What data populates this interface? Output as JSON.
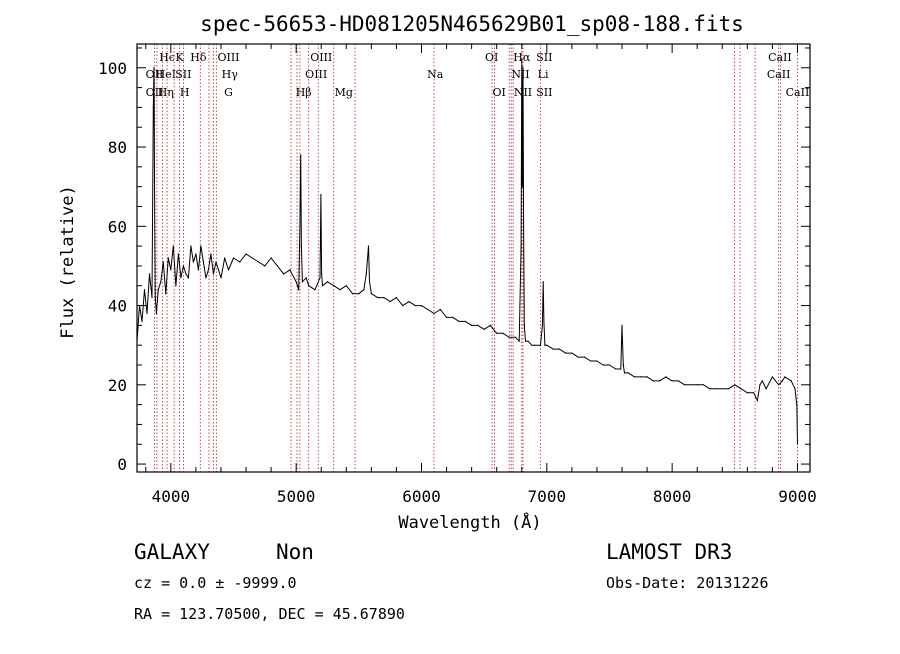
{
  "chart_data": {
    "type": "line",
    "title": "spec-56653-HD081205N465629B01_sp08-188.fits",
    "xlabel": "Wavelength (Å)",
    "ylabel": "Flux (relative)",
    "xlim": [
      3730,
      9100
    ],
    "ylim": [
      -2,
      106
    ],
    "xticks": [
      4000,
      5000,
      6000,
      7000,
      8000,
      9000
    ],
    "yticks": [
      0,
      20,
      40,
      60,
      80,
      100
    ],
    "x_tick_labels": [
      "4000",
      "5000",
      "6000",
      "7000",
      "8000",
      "9000"
    ],
    "y_tick_labels": [
      "0",
      "20",
      "40",
      "60",
      "80",
      "100"
    ],
    "series": [
      {
        "name": "flux",
        "x": [
          3730,
          3750,
          3770,
          3790,
          3810,
          3830,
          3850,
          3860,
          3866,
          3870,
          3876,
          3885,
          3900,
          3920,
          3940,
          3960,
          3980,
          4000,
          4020,
          4040,
          4060,
          4080,
          4100,
          4120,
          4140,
          4160,
          4180,
          4200,
          4220,
          4240,
          4260,
          4280,
          4300,
          4320,
          4340,
          4360,
          4380,
          4400,
          4430,
          4460,
          4500,
          4550,
          4600,
          4650,
          4700,
          4750,
          4800,
          4850,
          4900,
          4950,
          5000,
          5020,
          5030,
          5036,
          5042,
          5050,
          5080,
          5100,
          5150,
          5190,
          5197,
          5203,
          5210,
          5250,
          5300,
          5350,
          5400,
          5450,
          5500,
          5540,
          5560,
          5577,
          5585,
          5600,
          5650,
          5700,
          5750,
          5800,
          5850,
          5900,
          5950,
          6000,
          6050,
          6100,
          6150,
          6200,
          6250,
          6300,
          6350,
          6400,
          6450,
          6500,
          6550,
          6600,
          6650,
          6700,
          6750,
          6780,
          6795,
          6800,
          6805,
          6810,
          6815,
          6820,
          6830,
          6850,
          6880,
          6900,
          6950,
          6965,
          6971,
          6977,
          6985,
          7000,
          7050,
          7100,
          7150,
          7200,
          7250,
          7300,
          7350,
          7400,
          7450,
          7500,
          7550,
          7590,
          7600,
          7610,
          7620,
          7650,
          7700,
          7750,
          7800,
          7850,
          7900,
          7950,
          8000,
          8050,
          8100,
          8150,
          8200,
          8250,
          8300,
          8350,
          8400,
          8450,
          8500,
          8550,
          8600,
          8650,
          8680,
          8700,
          8720,
          8750,
          8800,
          8850,
          8880,
          8900,
          8950,
          8980,
          8995,
          9000
        ],
        "y": [
          31,
          40,
          36,
          44,
          38,
          48,
          42,
          90,
          100,
          72,
          42,
          38,
          44,
          46,
          51,
          43,
          52,
          49,
          55,
          45,
          53,
          47,
          50,
          48,
          47,
          55,
          51,
          53,
          49,
          55,
          51,
          47,
          49,
          53,
          48,
          51,
          49,
          47,
          52,
          49,
          52,
          51,
          53,
          52,
          51,
          50,
          52,
          50,
          48,
          49,
          46,
          44,
          60,
          78,
          55,
          46,
          47,
          45,
          44,
          47,
          68,
          48,
          45,
          46,
          45,
          44,
          45,
          43,
          43,
          44,
          48,
          55,
          46,
          43,
          42,
          42,
          41,
          42,
          40,
          41,
          40,
          40,
          39,
          38,
          39,
          37,
          37,
          36,
          36,
          35,
          35,
          34,
          35,
          33,
          33,
          32,
          32,
          31,
          55,
          102,
          70,
          100,
          60,
          35,
          31,
          31,
          30,
          30,
          30,
          35,
          46,
          36,
          30,
          30,
          29,
          29,
          28,
          28,
          27,
          27,
          26,
          26,
          25,
          25,
          24,
          24,
          35,
          25,
          23,
          23,
          22,
          22,
          22,
          21,
          21,
          22,
          21,
          21,
          20,
          20,
          20,
          20,
          19,
          19,
          19,
          19,
          20,
          19,
          18,
          18,
          16,
          20,
          21,
          19,
          22,
          20,
          21,
          22,
          21,
          19,
          15,
          5
        ]
      }
    ],
    "line_labels": [
      {
        "wavelength": 3870,
        "text": "OII",
        "row": 1
      },
      {
        "wavelength": 3870,
        "text": "OII",
        "row": 2
      },
      {
        "wavelength": 3970,
        "text": "Hϵ",
        "row": 0
      },
      {
        "wavelength": 3960,
        "text": "HeI",
        "row": 1
      },
      {
        "wavelength": 3960,
        "text": "Hη",
        "row": 2
      },
      {
        "wavelength": 4070,
        "text": "K",
        "row": 0
      },
      {
        "wavelength": 4100,
        "text": "SII",
        "row": 1
      },
      {
        "wavelength": 4110,
        "text": "H",
        "row": 2
      },
      {
        "wavelength": 4220,
        "text": "Hδ",
        "row": 0
      },
      {
        "wavelength": 4460,
        "text": "OIII",
        "row": 0
      },
      {
        "wavelength": 4470,
        "text": "Hγ",
        "row": 1
      },
      {
        "wavelength": 4460,
        "text": "G",
        "row": 2
      },
      {
        "wavelength": 5200,
        "text": "OIII",
        "row": 0
      },
      {
        "wavelength": 5160,
        "text": "OIII",
        "row": 1
      },
      {
        "wavelength": 5060,
        "text": "Hβ",
        "row": 2
      },
      {
        "wavelength": 5380,
        "text": "Mg",
        "row": 2
      },
      {
        "wavelength": 6110,
        "text": "Na",
        "row": 1
      },
      {
        "wavelength": 6560,
        "text": "OI",
        "row": 0
      },
      {
        "wavelength": 6620,
        "text": "OI",
        "row": 2
      },
      {
        "wavelength": 6800,
        "text": "Hα",
        "row": 0
      },
      {
        "wavelength": 6790,
        "text": "NII",
        "row": 1
      },
      {
        "wavelength": 6810,
        "text": "NII",
        "row": 2
      },
      {
        "wavelength": 6980,
        "text": "SII",
        "row": 0
      },
      {
        "wavelength": 6970,
        "text": "Li",
        "row": 1
      },
      {
        "wavelength": 6980,
        "text": "SII",
        "row": 2
      },
      {
        "wavelength": 8860,
        "text": "CaII",
        "row": 0
      },
      {
        "wavelength": 8850,
        "text": "CaII",
        "row": 1
      },
      {
        "wavelength": 9000,
        "text": "CaII",
        "row": 2
      }
    ],
    "line_markers": [
      3727,
      3870,
      3889,
      3933,
      3970,
      4026,
      4070,
      4101,
      4235,
      4304,
      4340,
      4363,
      4959,
      5007,
      5030,
      5100,
      5176,
      5300,
      5470,
      6100,
      6563,
      6583,
      6700,
      6716,
      6731,
      6800,
      6810,
      6950,
      8498,
      8542,
      8662,
      8850,
      8866,
      9000
    ]
  },
  "info": {
    "object_class": "GALAXY",
    "subclass": "Non",
    "survey": "LAMOST DR3",
    "redshift": "cz = 0.0 ± -9999.0",
    "obs_date": "Obs-Date: 20131226",
    "coords": "RA = 123.70500, DEC =  45.67890"
  }
}
